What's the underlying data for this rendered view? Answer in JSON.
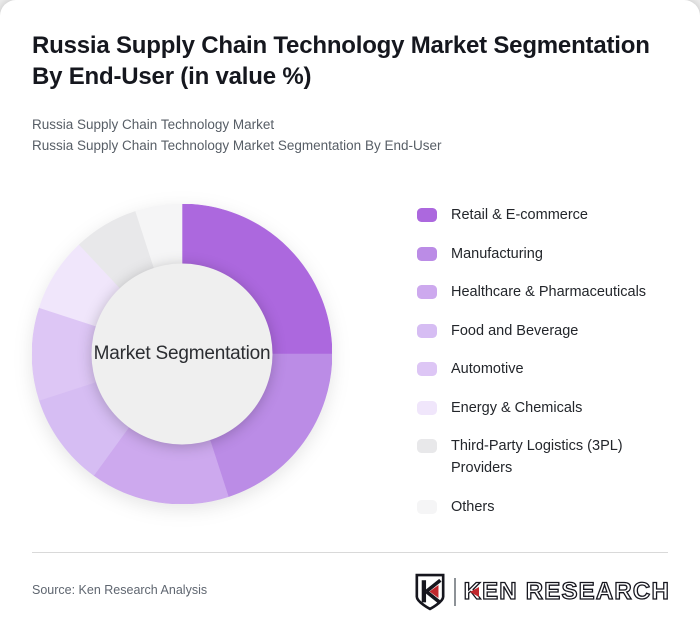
{
  "header": {
    "title_line1": "Russia Supply Chain Technology Market Segmentation",
    "title_line2": "By End-User (in value %)",
    "subtitle_line1": "Russia Supply Chain Technology Market",
    "subtitle_line2": "Russia Supply Chain Technology Market Segmentation By End-User"
  },
  "chart_data": {
    "type": "pie",
    "subtype": "donut",
    "title": "Russia Supply Chain Technology Market Segmentation By End-User (in value %)",
    "center_label": "Market Segmentation",
    "center_circle_color": "#efefef",
    "start_angle_deg": 0,
    "direction": "clockwise",
    "legend_position": "right",
    "values_labeled_on_chart": false,
    "unit": "value %",
    "segments": [
      {
        "label": "Retail & E-commerce",
        "value": 25,
        "color": "#ac68de"
      },
      {
        "label": "Manufacturing",
        "value": 20,
        "color": "#bb8ce6"
      },
      {
        "label": "Healthcare & Pharmaceuticals",
        "value": 15,
        "color": "#cda9ee"
      },
      {
        "label": "Food and Beverage",
        "value": 10,
        "color": "#d6bdf3"
      },
      {
        "label": "Automotive",
        "value": 10,
        "color": "#ddc6f5"
      },
      {
        "label": "Energy & Chemicals",
        "value": 8,
        "color": "#f0e6fb"
      },
      {
        "label": "Third-Party Logistics (3PL) Providers",
        "value": 7,
        "color": "#e8e8ea"
      },
      {
        "label": "Others",
        "value": 5,
        "color": "#f5f5f6"
      }
    ]
  },
  "footer": {
    "source": "Source: Ken Research Analysis",
    "logo_text": "KEN RESEARCH",
    "logo_accent_color": "#c1272d",
    "logo_text_color": "#16161e"
  }
}
